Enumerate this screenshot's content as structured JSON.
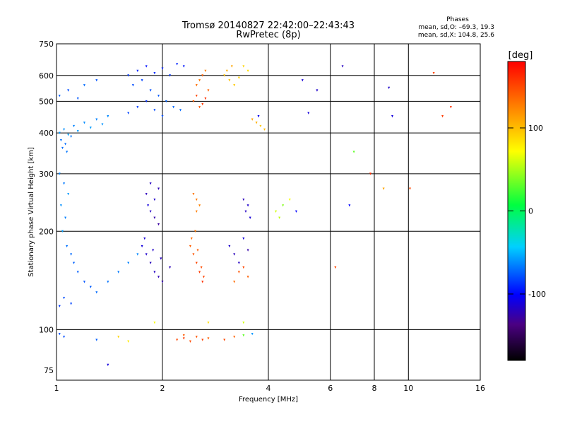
{
  "chart_data": {
    "type": "scatter",
    "title": "Tromsø 20140827 22:42:00–22:43:43",
    "subtitle": "RwPretec (8p)",
    "stats": {
      "heading": "Phases",
      "line1": "mean, sd,O: –69.3, 19.3",
      "line2": "mean, sd,X: 104.8, 25.6"
    },
    "xlabel": "Frequency [MHz]",
    "ylabel": "Stationary phase Virtual Height [km]",
    "x_scale": "log",
    "y_scale": "log",
    "xlim": [
      1,
      16
    ],
    "ylim": [
      70,
      750
    ],
    "x_ticks": [
      {
        "value": 1,
        "label": "1"
      },
      {
        "value": 2,
        "label": "2"
      },
      {
        "value": 4,
        "label": "4"
      },
      {
        "value": 6,
        "label": "6"
      },
      {
        "value": 8,
        "label": "8"
      },
      {
        "value": 10,
        "label": "10"
      },
      {
        "value": 16,
        "label": "16"
      }
    ],
    "y_ticks": [
      {
        "value": 75,
        "label": "75"
      },
      {
        "value": 100,
        "label": "100"
      },
      {
        "value": 200,
        "label": "200"
      },
      {
        "value": 300,
        "label": "300"
      },
      {
        "value": 400,
        "label": "400"
      },
      {
        "value": 500,
        "label": "500"
      },
      {
        "value": 600,
        "label": "600"
      },
      {
        "value": 750,
        "label": "750"
      }
    ],
    "grid": true,
    "colorbar": {
      "label": "[deg]",
      "range": [
        -180,
        180
      ],
      "ticks": [
        {
          "value": 100,
          "label": "100"
        },
        {
          "value": 0,
          "label": "0"
        },
        {
          "value": -100,
          "label": "-100"
        }
      ]
    },
    "points": [
      [
        1.02,
        400,
        -60
      ],
      [
        1.05,
        410,
        -62
      ],
      [
        1.08,
        395,
        -58
      ],
      [
        1.12,
        420,
        -65
      ],
      [
        1.15,
        405,
        -60
      ],
      [
        1.2,
        430,
        -63
      ],
      [
        1.25,
        415,
        -59
      ],
      [
        1.3,
        440,
        -66
      ],
      [
        1.35,
        425,
        -61
      ],
      [
        1.4,
        450,
        -64
      ],
      [
        1.03,
        380,
        -70
      ],
      [
        1.06,
        370,
        -72
      ],
      [
        1.1,
        390,
        -68
      ],
      [
        1.04,
        360,
        -71
      ],
      [
        1.07,
        350,
        -69
      ],
      [
        1.02,
        520,
        -75
      ],
      [
        1.08,
        540,
        -80
      ],
      [
        1.15,
        510,
        -77
      ],
      [
        1.2,
        560,
        -72
      ],
      [
        1.3,
        580,
        -78
      ],
      [
        1.6,
        600,
        -85
      ],
      [
        1.7,
        620,
        -90
      ],
      [
        1.8,
        640,
        -95
      ],
      [
        1.9,
        610,
        -88
      ],
      [
        2.0,
        630,
        -92
      ],
      [
        2.1,
        600,
        -86
      ],
      [
        2.2,
        650,
        -91
      ],
      [
        2.3,
        640,
        -94
      ],
      [
        1.65,
        560,
        -80
      ],
      [
        1.75,
        580,
        -83
      ],
      [
        1.85,
        540,
        -79
      ],
      [
        1.95,
        520,
        -76
      ],
      [
        2.05,
        500,
        -74
      ],
      [
        2.15,
        480,
        -73
      ],
      [
        2.25,
        470,
        -72
      ],
      [
        1.6,
        460,
        -82
      ],
      [
        1.7,
        480,
        -85
      ],
      [
        1.8,
        500,
        -88
      ],
      [
        1.9,
        470,
        -81
      ],
      [
        2.0,
        450,
        -78
      ],
      [
        2.45,
        500,
        140
      ],
      [
        2.5,
        520,
        150
      ],
      [
        2.55,
        480,
        145
      ],
      [
        2.6,
        490,
        155
      ],
      [
        2.65,
        510,
        160
      ],
      [
        2.5,
        560,
        135
      ],
      [
        2.55,
        580,
        130
      ],
      [
        2.6,
        600,
        140
      ],
      [
        2.65,
        620,
        125
      ],
      [
        2.7,
        540,
        138
      ],
      [
        3.0,
        600,
        100
      ],
      [
        3.05,
        620,
        105
      ],
      [
        3.1,
        580,
        98
      ],
      [
        3.15,
        640,
        110
      ],
      [
        3.2,
        560,
        95
      ],
      [
        3.4,
        640,
        90
      ],
      [
        3.5,
        620,
        85
      ],
      [
        3.3,
        590,
        92
      ],
      [
        3.6,
        440,
        110
      ],
      [
        3.7,
        430,
        105
      ],
      [
        3.8,
        420,
        95
      ],
      [
        3.9,
        410,
        100
      ],
      [
        3.75,
        450,
        -105
      ],
      [
        1.02,
        300,
        -65
      ],
      [
        1.05,
        280,
        -68
      ],
      [
        1.08,
        260,
        -60
      ],
      [
        1.03,
        240,
        -62
      ],
      [
        1.06,
        220,
        -66
      ],
      [
        1.04,
        200,
        -58
      ],
      [
        1.07,
        180,
        -70
      ],
      [
        1.1,
        170,
        -72
      ],
      [
        1.12,
        160,
        -74
      ],
      [
        1.15,
        150,
        -75
      ],
      [
        1.2,
        140,
        -78
      ],
      [
        1.25,
        135,
        -76
      ],
      [
        1.3,
        130,
        -72
      ],
      [
        1.4,
        140,
        -70
      ],
      [
        1.5,
        150,
        -68
      ],
      [
        1.6,
        160,
        -66
      ],
      [
        1.7,
        170,
        -64
      ],
      [
        1.05,
        125,
        -80
      ],
      [
        1.1,
        120,
        -82
      ],
      [
        1.02,
        118,
        -85
      ],
      [
        1.75,
        180,
        -110
      ],
      [
        1.8,
        170,
        -115
      ],
      [
        1.85,
        160,
        -120
      ],
      [
        1.9,
        150,
        -118
      ],
      [
        1.95,
        145,
        -122
      ],
      [
        2.0,
        140,
        -125
      ],
      [
        1.78,
        190,
        -112
      ],
      [
        1.88,
        175,
        -116
      ],
      [
        1.98,
        165,
        -119
      ],
      [
        2.1,
        155,
        -121
      ],
      [
        1.8,
        260,
        -120
      ],
      [
        1.85,
        280,
        -118
      ],
      [
        1.9,
        250,
        -115
      ],
      [
        1.95,
        270,
        -122
      ],
      [
        1.82,
        240,
        -110
      ],
      [
        1.9,
        220,
        -125
      ],
      [
        1.95,
        210,
        -128
      ],
      [
        1.85,
        230,
        -117
      ],
      [
        2.4,
        180,
        140
      ],
      [
        2.45,
        170,
        145
      ],
      [
        2.5,
        160,
        150
      ],
      [
        2.55,
        150,
        155
      ],
      [
        2.6,
        140,
        160
      ],
      [
        2.42,
        190,
        135
      ],
      [
        2.48,
        200,
        130
      ],
      [
        2.52,
        175,
        142
      ],
      [
        2.58,
        155,
        148
      ],
      [
        2.62,
        145,
        152
      ],
      [
        2.5,
        250,
        130
      ],
      [
        2.55,
        240,
        125
      ],
      [
        2.45,
        260,
        132
      ],
      [
        2.5,
        230,
        128
      ],
      [
        3.1,
        180,
        -115
      ],
      [
        3.2,
        170,
        -120
      ],
      [
        3.3,
        160,
        -118
      ],
      [
        3.4,
        190,
        -110
      ],
      [
        3.5,
        175,
        -125
      ],
      [
        3.3,
        150,
        145
      ],
      [
        3.4,
        155,
        150
      ],
      [
        3.5,
        145,
        140
      ],
      [
        3.2,
        140,
        135
      ],
      [
        3.4,
        250,
        -120
      ],
      [
        3.5,
        240,
        -115
      ],
      [
        3.45,
        230,
        -118
      ],
      [
        3.55,
        220,
        -112
      ],
      [
        4.2,
        230,
        60
      ],
      [
        4.4,
        240,
        40
      ],
      [
        4.6,
        250,
        70
      ],
      [
        4.3,
        220,
        55
      ],
      [
        4.8,
        230,
        -100
      ],
      [
        5.2,
        460,
        -110
      ],
      [
        5.5,
        540,
        -115
      ],
      [
        5.0,
        580,
        -112
      ],
      [
        6.5,
        640,
        -118
      ],
      [
        7.8,
        300,
        160
      ],
      [
        8.5,
        270,
        110
      ],
      [
        10.1,
        270,
        150
      ],
      [
        11.8,
        610,
        150
      ],
      [
        12.5,
        450,
        155
      ],
      [
        13.2,
        480,
        160
      ],
      [
        8.8,
        550,
        -115
      ],
      [
        9.0,
        450,
        -110
      ],
      [
        7.0,
        350,
        30
      ],
      [
        6.8,
        240,
        -100
      ],
      [
        6.2,
        155,
        150
      ],
      [
        1.5,
        95,
        90
      ],
      [
        1.6,
        92,
        80
      ],
      [
        1.3,
        93,
        -75
      ],
      [
        1.05,
        95,
        -80
      ],
      [
        1.02,
        97,
        -78
      ],
      [
        2.2,
        93,
        150
      ],
      [
        2.3,
        94,
        155
      ],
      [
        2.4,
        92,
        148
      ],
      [
        2.5,
        95,
        145
      ],
      [
        2.6,
        93,
        152
      ],
      [
        2.7,
        94,
        140
      ],
      [
        2.3,
        96,
        142
      ],
      [
        3.0,
        93,
        150
      ],
      [
        3.2,
        95,
        140
      ],
      [
        3.4,
        96,
        30
      ],
      [
        3.6,
        97,
        -60
      ],
      [
        1.4,
        78,
        -110
      ],
      [
        1.9,
        105,
        70
      ],
      [
        2.7,
        105,
        85
      ],
      [
        3.4,
        105,
        60
      ]
    ]
  }
}
